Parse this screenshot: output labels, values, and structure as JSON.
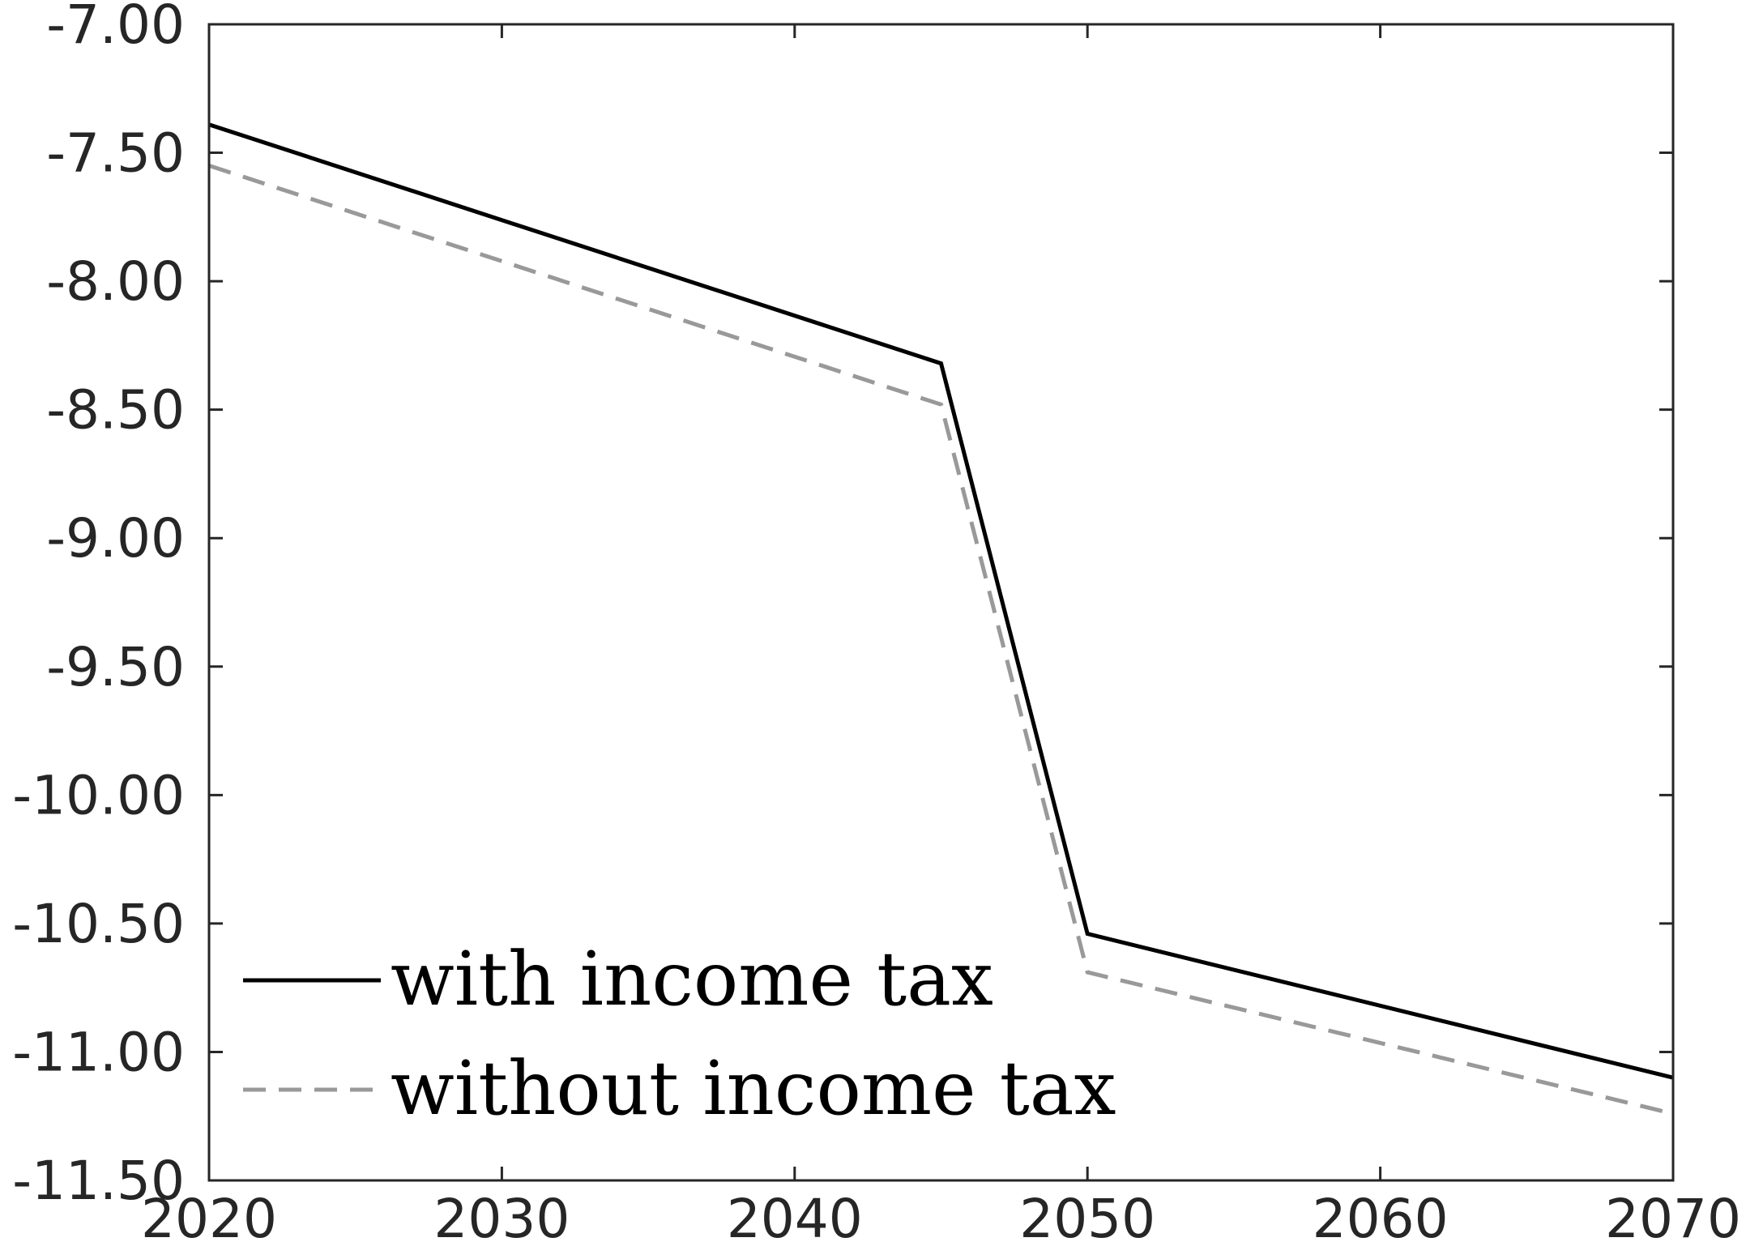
{
  "chart_data": {
    "type": "line",
    "title": "",
    "xlabel": "",
    "ylabel": "",
    "xlim": [
      2020,
      2070
    ],
    "ylim": [
      -11.5,
      -7.0
    ],
    "x_ticks": [
      2020,
      2030,
      2040,
      2050,
      2060,
      2070
    ],
    "y_ticks": [
      -7.0,
      -7.5,
      -8.0,
      -8.5,
      -9.0,
      -9.5,
      -10.0,
      -10.5,
      -11.0,
      -11.5
    ],
    "x_tick_labels": [
      "2020",
      "2030",
      "2040",
      "2050",
      "2060",
      "2070"
    ],
    "y_tick_labels": [
      "-7.00",
      "-7.50",
      "-8.00",
      "-8.50",
      "-9.00",
      "-9.50",
      "-10.00",
      "-10.50",
      "-11.00",
      "-11.50"
    ],
    "grid": false,
    "legend_position": "bottom-left",
    "series": [
      {
        "name": "with income tax",
        "color": "#000000",
        "style": "solid",
        "x": [
          2020,
          2045,
          2050,
          2070
        ],
        "y": [
          -7.39,
          -8.32,
          -10.54,
          -11.1
        ]
      },
      {
        "name": "without income tax",
        "color": "#999999",
        "style": "dashed",
        "x": [
          2020,
          2045,
          2050,
          2070
        ],
        "y": [
          -7.55,
          -8.48,
          -10.69,
          -11.24
        ]
      }
    ]
  }
}
